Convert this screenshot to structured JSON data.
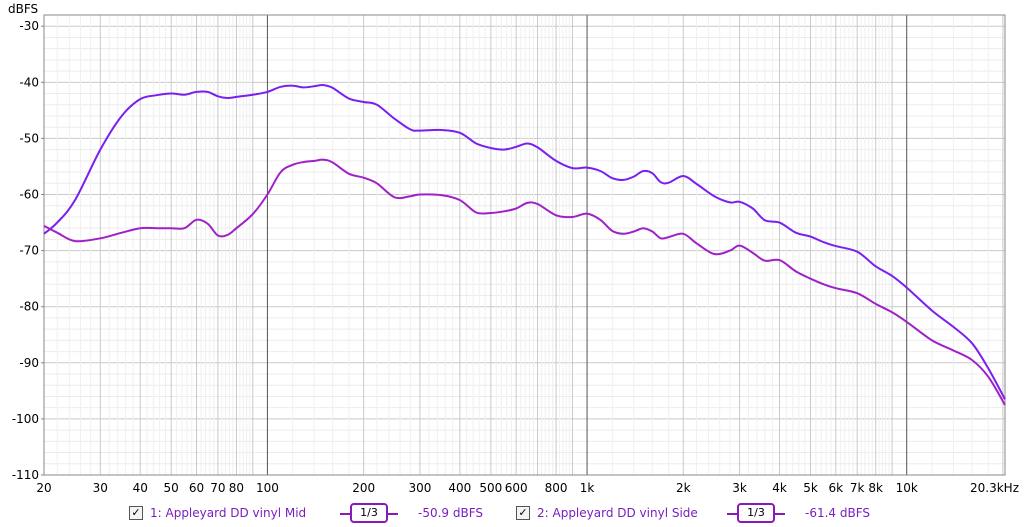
{
  "chart_data": {
    "type": "line",
    "ylabel": "dBFS",
    "x_scale": "log",
    "xlim": [
      20,
      20300
    ],
    "ylim": [
      -110,
      -28
    ],
    "x_ticks": [
      {
        "v": 20,
        "label": "20"
      },
      {
        "v": 30,
        "label": "30"
      },
      {
        "v": 40,
        "label": "40"
      },
      {
        "v": 50,
        "label": "50"
      },
      {
        "v": 60,
        "label": "60"
      },
      {
        "v": 70,
        "label": "70"
      },
      {
        "v": 80,
        "label": "80"
      },
      {
        "v": 100,
        "label": "100"
      },
      {
        "v": 200,
        "label": "200"
      },
      {
        "v": 300,
        "label": "300"
      },
      {
        "v": 400,
        "label": "400"
      },
      {
        "v": 500,
        "label": "500"
      },
      {
        "v": 600,
        "label": "600"
      },
      {
        "v": 800,
        "label": "800"
      },
      {
        "v": 1000,
        "label": "1k"
      },
      {
        "v": 2000,
        "label": "2k"
      },
      {
        "v": 3000,
        "label": "3k"
      },
      {
        "v": 4000,
        "label": "4k"
      },
      {
        "v": 5000,
        "label": "5k"
      },
      {
        "v": 6000,
        "label": "6k"
      },
      {
        "v": 7000,
        "label": "7k"
      },
      {
        "v": 8000,
        "label": "8k"
      },
      {
        "v": 10000,
        "label": "10k"
      },
      {
        "v": 20300,
        "label": "20.3kHz"
      }
    ],
    "y_ticks": [
      -30,
      -40,
      -50,
      -60,
      -70,
      -80,
      -90,
      -100,
      -110
    ],
    "grid": true,
    "series": [
      {
        "name": "1: Appleyard DD vinyl Mid",
        "color": "#7a1ff0",
        "points": [
          [
            20,
            -67
          ],
          [
            22,
            -65
          ],
          [
            25,
            -61
          ],
          [
            30,
            -52
          ],
          [
            35,
            -46
          ],
          [
            40,
            -43
          ],
          [
            45,
            -42.3
          ],
          [
            50,
            -42
          ],
          [
            55,
            -42.2
          ],
          [
            60,
            -41.7
          ],
          [
            65,
            -41.7
          ],
          [
            70,
            -42.5
          ],
          [
            75,
            -42.8
          ],
          [
            80,
            -42.6
          ],
          [
            90,
            -42.2
          ],
          [
            100,
            -41.7
          ],
          [
            110,
            -40.8
          ],
          [
            120,
            -40.6
          ],
          [
            130,
            -40.9
          ],
          [
            140,
            -40.7
          ],
          [
            150,
            -40.5
          ],
          [
            160,
            -41
          ],
          [
            180,
            -42.9
          ],
          [
            200,
            -43.5
          ],
          [
            220,
            -44
          ],
          [
            250,
            -46.5
          ],
          [
            280,
            -48.4
          ],
          [
            300,
            -48.6
          ],
          [
            350,
            -48.5
          ],
          [
            400,
            -49
          ],
          [
            450,
            -50.9
          ],
          [
            500,
            -51.7
          ],
          [
            550,
            -52
          ],
          [
            600,
            -51.5
          ],
          [
            650,
            -50.9
          ],
          [
            700,
            -51.6
          ],
          [
            800,
            -54
          ],
          [
            900,
            -55.3
          ],
          [
            1000,
            -55.2
          ],
          [
            1100,
            -55.8
          ],
          [
            1200,
            -57.1
          ],
          [
            1300,
            -57.4
          ],
          [
            1400,
            -56.8
          ],
          [
            1500,
            -55.8
          ],
          [
            1600,
            -56.2
          ],
          [
            1700,
            -57.8
          ],
          [
            1800,
            -57.9
          ],
          [
            2000,
            -56.7
          ],
          [
            2200,
            -58.1
          ],
          [
            2500,
            -60.3
          ],
          [
            2800,
            -61.4
          ],
          [
            3000,
            -61.3
          ],
          [
            3300,
            -62.5
          ],
          [
            3600,
            -64.6
          ],
          [
            4000,
            -65
          ],
          [
            4500,
            -66.8
          ],
          [
            5000,
            -67.5
          ],
          [
            5500,
            -68.5
          ],
          [
            6000,
            -69.2
          ],
          [
            7000,
            -70.2
          ],
          [
            8000,
            -72.8
          ],
          [
            9000,
            -74.5
          ],
          [
            10000,
            -76.6
          ],
          [
            12000,
            -80.7
          ],
          [
            14000,
            -83.6
          ],
          [
            16000,
            -86.5
          ],
          [
            18000,
            -91
          ],
          [
            20300,
            -96.5
          ]
        ]
      },
      {
        "name": "2: Appleyard DD vinyl Side",
        "color": "#a020c8",
        "points": [
          [
            20,
            -65.6
          ],
          [
            22,
            -66.8
          ],
          [
            25,
            -68.3
          ],
          [
            30,
            -67.8
          ],
          [
            35,
            -66.8
          ],
          [
            40,
            -66
          ],
          [
            45,
            -66
          ],
          [
            50,
            -66
          ],
          [
            55,
            -66
          ],
          [
            60,
            -64.5
          ],
          [
            65,
            -65.2
          ],
          [
            70,
            -67.3
          ],
          [
            75,
            -67.2
          ],
          [
            80,
            -66
          ],
          [
            90,
            -63.5
          ],
          [
            100,
            -60
          ],
          [
            110,
            -56
          ],
          [
            120,
            -54.7
          ],
          [
            130,
            -54.2
          ],
          [
            140,
            -54
          ],
          [
            150,
            -53.8
          ],
          [
            160,
            -54.3
          ],
          [
            180,
            -56.3
          ],
          [
            200,
            -57
          ],
          [
            220,
            -58
          ],
          [
            250,
            -60.5
          ],
          [
            280,
            -60.3
          ],
          [
            300,
            -60
          ],
          [
            350,
            -60.1
          ],
          [
            400,
            -61
          ],
          [
            450,
            -63.2
          ],
          [
            500,
            -63.3
          ],
          [
            550,
            -63
          ],
          [
            600,
            -62.5
          ],
          [
            650,
            -61.5
          ],
          [
            700,
            -61.7
          ],
          [
            800,
            -63.7
          ],
          [
            900,
            -64
          ],
          [
            1000,
            -63.4
          ],
          [
            1100,
            -64.5
          ],
          [
            1200,
            -66.5
          ],
          [
            1300,
            -67
          ],
          [
            1400,
            -66.6
          ],
          [
            1500,
            -66
          ],
          [
            1600,
            -66.6
          ],
          [
            1700,
            -67.8
          ],
          [
            1800,
            -67.6
          ],
          [
            2000,
            -67
          ],
          [
            2200,
            -68.7
          ],
          [
            2500,
            -70.6
          ],
          [
            2800,
            -70
          ],
          [
            3000,
            -69.1
          ],
          [
            3300,
            -70.4
          ],
          [
            3600,
            -71.8
          ],
          [
            4000,
            -71.7
          ],
          [
            4500,
            -73.7
          ],
          [
            5000,
            -75
          ],
          [
            5500,
            -76
          ],
          [
            6000,
            -76.7
          ],
          [
            7000,
            -77.6
          ],
          [
            8000,
            -79.5
          ],
          [
            9000,
            -81
          ],
          [
            10000,
            -82.7
          ],
          [
            12000,
            -86
          ],
          [
            14000,
            -87.8
          ],
          [
            16000,
            -89.5
          ],
          [
            18000,
            -92.5
          ],
          [
            20300,
            -97.5
          ]
        ]
      }
    ]
  },
  "legend": [
    {
      "checked": "✓",
      "name": "1: Appleyard DD vinyl Mid",
      "smoothing": "1/3",
      "level": "-50.9 dBFS"
    },
    {
      "checked": "✓",
      "name": "2: Appleyard DD vinyl Side",
      "smoothing": "1/3",
      "level": "-61.4 dBFS"
    }
  ]
}
